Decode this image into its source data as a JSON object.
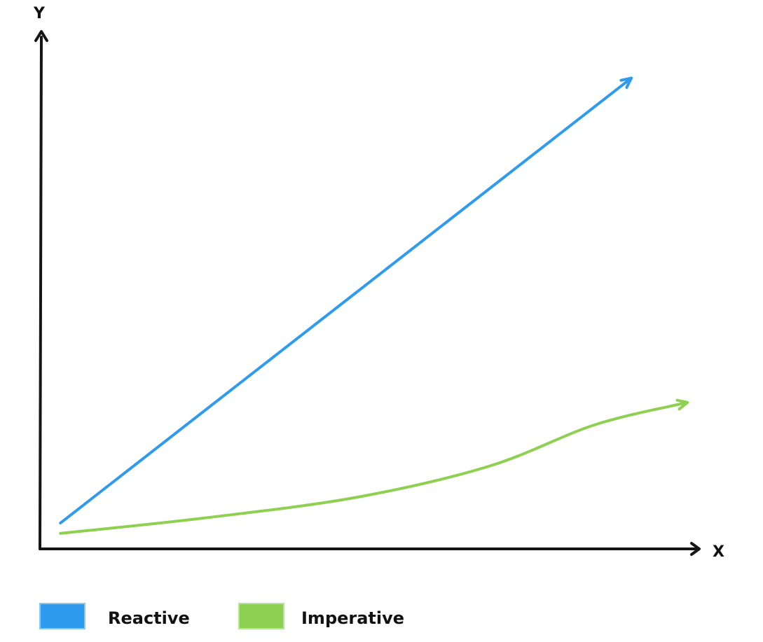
{
  "chart_data": {
    "type": "line",
    "xlabel": "X",
    "ylabel": "Y",
    "xlim": [
      0,
      1
    ],
    "ylim": [
      0,
      1
    ],
    "grid": false,
    "legend_position": "bottom-left",
    "series": [
      {
        "name": "Reactive",
        "color": "#2f9bef",
        "points": [
          [
            0.03,
            0.05
          ],
          [
            0.895,
            0.91
          ]
        ]
      },
      {
        "name": "Imperative",
        "color": "#8ed04f",
        "points": [
          [
            0.03,
            0.03
          ],
          [
            0.25,
            0.06
          ],
          [
            0.48,
            0.1
          ],
          [
            0.68,
            0.16
          ],
          [
            0.84,
            0.24
          ],
          [
            0.98,
            0.283
          ]
        ]
      }
    ]
  }
}
